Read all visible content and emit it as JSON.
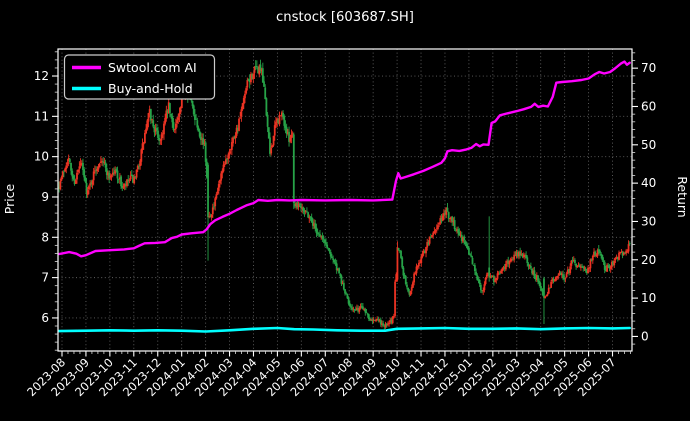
{
  "window": {
    "background": "#000000",
    "foreground": "#ffffff"
  },
  "chart_data": {
    "type": "candlestick",
    "title": "cnstock [603687.SH]",
    "grid": {
      "show": true,
      "style": "dotted",
      "color": "#626262"
    },
    "x_axis": {
      "rotation": 45,
      "tick_labels": [
        "2023-08",
        "2023-09",
        "2023-10",
        "2023-11",
        "2023-12",
        "2024-01",
        "2024-02",
        "2024-03",
        "2024-04",
        "2024-05",
        "2024-06",
        "2024-07",
        "2024-08",
        "2024-09",
        "2024-10",
        "2024-11",
        "2024-12",
        "2025-01",
        "2025-02",
        "2025-03",
        "2025-04",
        "2025-05",
        "2025-06",
        "2025-07"
      ]
    },
    "price_axis": {
      "label": "Price",
      "ticks": [
        6,
        7,
        8,
        9,
        10,
        11,
        12
      ],
      "range": [
        5.18,
        12.67
      ],
      "minor_step": 0.2
    },
    "return_axis": {
      "label": "Return",
      "ticks": [
        0,
        10,
        20,
        30,
        40,
        50,
        60,
        70
      ],
      "range": [
        -3.8,
        75.0
      ],
      "minor_step": 2
    },
    "candles": {
      "convention": "china-red-up",
      "up_color": "#ec3323",
      "down_color": "#27a348",
      "count": 480,
      "t_start": -0.12,
      "t_end": 23.72,
      "daily_volatility": 0.011,
      "seed": 7,
      "close_path": [
        [
          -0.12,
          9.3
        ],
        [
          0.1,
          9.7
        ],
        [
          0.25,
          10.0
        ],
        [
          0.5,
          9.35
        ],
        [
          0.8,
          9.85
        ],
        [
          1.05,
          9.1
        ],
        [
          1.35,
          9.6
        ],
        [
          1.65,
          10.0
        ],
        [
          1.95,
          9.5
        ],
        [
          2.25,
          9.65
        ],
        [
          2.55,
          9.2
        ],
        [
          2.85,
          9.45
        ],
        [
          3.05,
          9.4
        ],
        [
          3.35,
          10.2
        ],
        [
          3.65,
          11.1
        ],
        [
          3.85,
          10.7
        ],
        [
          4.1,
          10.4
        ],
        [
          4.45,
          11.25
        ],
        [
          4.65,
          10.7
        ],
        [
          4.9,
          11.0
        ],
        [
          5.15,
          11.8
        ],
        [
          5.35,
          11.45
        ],
        [
          5.65,
          10.8
        ],
        [
          5.95,
          10.25
        ],
        [
          6.05,
          9.6
        ],
        [
          6.12,
          8.5
        ],
        [
          6.35,
          8.75
        ],
        [
          6.6,
          9.4
        ],
        [
          7.0,
          10.2
        ],
        [
          7.4,
          10.85
        ],
        [
          7.75,
          11.8
        ],
        [
          8.0,
          12.1
        ],
        [
          8.3,
          12.2
        ],
        [
          8.5,
          11.4
        ],
        [
          8.68,
          10.05
        ],
        [
          8.95,
          10.85
        ],
        [
          9.2,
          11.05
        ],
        [
          9.45,
          10.45
        ],
        [
          9.62,
          10.6
        ],
        [
          9.66,
          10.5
        ],
        [
          9.7,
          8.85
        ],
        [
          10.0,
          8.8
        ],
        [
          10.35,
          8.5
        ],
        [
          10.65,
          8.15
        ],
        [
          10.95,
          7.9
        ],
        [
          11.3,
          7.5
        ],
        [
          11.65,
          6.95
        ],
        [
          11.95,
          6.4
        ],
        [
          12.25,
          6.15
        ],
        [
          12.55,
          6.3
        ],
        [
          12.85,
          6.0
        ],
        [
          13.15,
          5.95
        ],
        [
          13.5,
          5.8
        ],
        [
          13.75,
          5.9
        ],
        [
          13.88,
          6.1
        ],
        [
          13.95,
          6.9
        ],
        [
          14.03,
          7.75
        ],
        [
          14.1,
          7.7
        ],
        [
          14.3,
          7.0
        ],
        [
          14.5,
          6.55
        ],
        [
          14.75,
          7.15
        ],
        [
          15.05,
          7.55
        ],
        [
          15.4,
          8.0
        ],
        [
          15.75,
          8.35
        ],
        [
          16.05,
          8.65
        ],
        [
          16.35,
          8.35
        ],
        [
          16.7,
          8.0
        ],
        [
          17.0,
          7.65
        ],
        [
          17.35,
          7.0
        ],
        [
          17.55,
          6.65
        ],
        [
          17.8,
          7.2
        ],
        [
          17.87,
          7.05
        ],
        [
          17.95,
          7.0
        ],
        [
          18.05,
          6.95
        ],
        [
          18.35,
          7.15
        ],
        [
          18.7,
          7.45
        ],
        [
          19.05,
          7.6
        ],
        [
          19.35,
          7.5
        ],
        [
          19.7,
          7.1
        ],
        [
          19.95,
          6.9
        ],
        [
          20.1,
          6.55
        ],
        [
          20.18,
          6.5
        ],
        [
          20.45,
          6.9
        ],
        [
          20.75,
          7.1
        ],
        [
          21.05,
          7.0
        ],
        [
          21.35,
          7.45
        ],
        [
          21.6,
          7.25
        ],
        [
          21.9,
          7.15
        ],
        [
          22.2,
          7.55
        ],
        [
          22.45,
          7.7
        ],
        [
          22.7,
          7.2
        ],
        [
          22.95,
          7.35
        ],
        [
          23.25,
          7.55
        ],
        [
          23.5,
          7.65
        ],
        [
          23.72,
          7.8
        ]
      ],
      "special_candles": [
        {
          "t": 6.1,
          "o": 9.8,
          "h": 9.85,
          "l": 7.42,
          "c": 8.5
        },
        {
          "t": 9.68,
          "o": 10.55,
          "h": 10.6,
          "l": 8.7,
          "c": 8.85
        },
        {
          "t": 13.93,
          "o": 6.05,
          "h": 6.95,
          "l": 6.0,
          "c": 6.9
        },
        {
          "t": 14.02,
          "o": 6.95,
          "h": 7.9,
          "l": 6.9,
          "c": 7.75
        },
        {
          "t": 17.87,
          "o": 7.25,
          "h": 8.52,
          "l": 6.9,
          "c": 7.0
        },
        {
          "t": 20.12,
          "o": 6.98,
          "h": 7.02,
          "l": 5.85,
          "c": 6.5
        }
      ]
    },
    "series": [
      {
        "name": "Swtool.com AI",
        "color": "#ff00ff",
        "axis": "return",
        "width": 2.4,
        "path": [
          [
            -0.12,
            21.5
          ],
          [
            0.3,
            22.0
          ],
          [
            0.6,
            21.6
          ],
          [
            0.8,
            20.9
          ],
          [
            1.0,
            21.2
          ],
          [
            1.4,
            22.3
          ],
          [
            2.0,
            22.5
          ],
          [
            2.6,
            22.7
          ],
          [
            3.0,
            23.0
          ],
          [
            3.2,
            23.6
          ],
          [
            3.45,
            24.3
          ],
          [
            3.9,
            24.4
          ],
          [
            4.3,
            24.6
          ],
          [
            4.6,
            25.7
          ],
          [
            4.8,
            26.0
          ],
          [
            5.0,
            26.6
          ],
          [
            5.4,
            26.9
          ],
          [
            5.9,
            27.2
          ],
          [
            6.05,
            28.0
          ],
          [
            6.2,
            29.3
          ],
          [
            6.4,
            30.3
          ],
          [
            6.7,
            31.2
          ],
          [
            7.0,
            32.0
          ],
          [
            7.3,
            33.0
          ],
          [
            7.7,
            34.2
          ],
          [
            8.0,
            34.8
          ],
          [
            8.2,
            35.6
          ],
          [
            8.6,
            35.4
          ],
          [
            9.0,
            35.6
          ],
          [
            9.5,
            35.5
          ],
          [
            10.0,
            35.6
          ],
          [
            11.0,
            35.5
          ],
          [
            12.0,
            35.6
          ],
          [
            13.0,
            35.5
          ],
          [
            13.8,
            35.7
          ],
          [
            13.95,
            40.5
          ],
          [
            14.05,
            42.6
          ],
          [
            14.15,
            41.2
          ],
          [
            14.35,
            41.6
          ],
          [
            14.7,
            42.3
          ],
          [
            15.1,
            43.2
          ],
          [
            15.5,
            44.3
          ],
          [
            15.85,
            45.3
          ],
          [
            16.0,
            46.5
          ],
          [
            16.1,
            48.3
          ],
          [
            16.3,
            48.6
          ],
          [
            16.6,
            48.4
          ],
          [
            16.9,
            48.8
          ],
          [
            17.1,
            49.2
          ],
          [
            17.3,
            50.2
          ],
          [
            17.45,
            49.6
          ],
          [
            17.6,
            50.1
          ],
          [
            17.82,
            50.0
          ],
          [
            17.95,
            55.7
          ],
          [
            18.1,
            56.1
          ],
          [
            18.3,
            57.7
          ],
          [
            18.6,
            58.2
          ],
          [
            19.0,
            58.8
          ],
          [
            19.3,
            59.3
          ],
          [
            19.6,
            59.9
          ],
          [
            19.75,
            60.7
          ],
          [
            19.9,
            59.9
          ],
          [
            20.1,
            60.2
          ],
          [
            20.3,
            60.0
          ],
          [
            20.5,
            62.5
          ],
          [
            20.65,
            66.2
          ],
          [
            20.9,
            66.4
          ],
          [
            21.3,
            66.6
          ],
          [
            21.7,
            66.9
          ],
          [
            22.0,
            67.3
          ],
          [
            22.25,
            68.4
          ],
          [
            22.45,
            69.0
          ],
          [
            22.65,
            68.6
          ],
          [
            22.9,
            69.0
          ],
          [
            23.1,
            69.9
          ],
          [
            23.35,
            71.2
          ],
          [
            23.5,
            71.7
          ],
          [
            23.6,
            70.9
          ],
          [
            23.72,
            71.4
          ]
        ]
      },
      {
        "name": "Buy-and-Hold",
        "color": "#00ffff",
        "axis": "return",
        "width": 2.6,
        "path": [
          [
            -0.12,
            1.4
          ],
          [
            1,
            1.5
          ],
          [
            2,
            1.6
          ],
          [
            3,
            1.5
          ],
          [
            4,
            1.6
          ],
          [
            5,
            1.5
          ],
          [
            6,
            1.3
          ],
          [
            7,
            1.6
          ],
          [
            8,
            2.0
          ],
          [
            9,
            2.2
          ],
          [
            9.7,
            1.9
          ],
          [
            10.5,
            1.8
          ],
          [
            11.5,
            1.6
          ],
          [
            12.5,
            1.5
          ],
          [
            13.5,
            1.5
          ],
          [
            14,
            2.0
          ],
          [
            15,
            2.1
          ],
          [
            16,
            2.2
          ],
          [
            17,
            2.0
          ],
          [
            18,
            2.0
          ],
          [
            19,
            2.1
          ],
          [
            20,
            1.9
          ],
          [
            21,
            2.1
          ],
          [
            22,
            2.2
          ],
          [
            23,
            2.1
          ],
          [
            23.72,
            2.2
          ]
        ]
      }
    ],
    "legend": {
      "position": "upper-left",
      "border_color": "#cccccc",
      "entries": [
        "Swtool.com AI",
        "Buy-and-Hold"
      ]
    }
  }
}
